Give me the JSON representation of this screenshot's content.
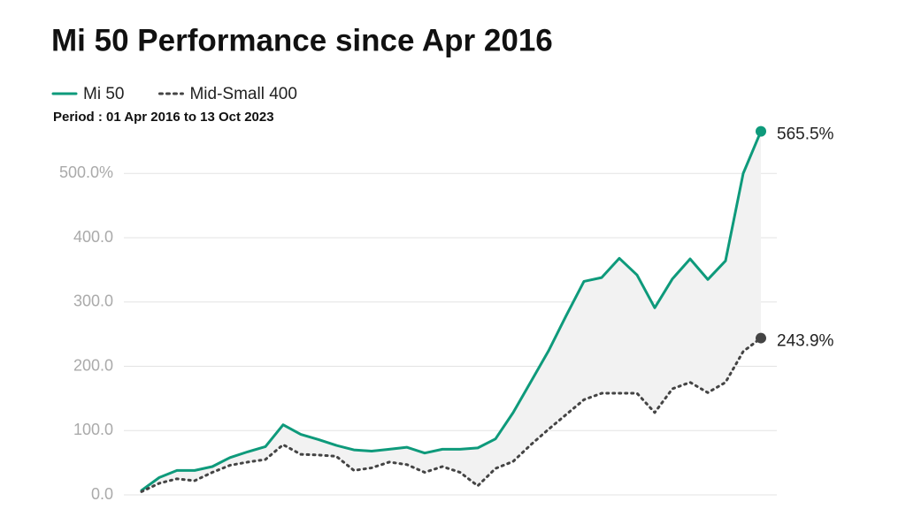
{
  "chart_data": {
    "type": "line",
    "title": "Mi 50 Performance since Apr 2016",
    "subtitle": "Period : 01 Apr 2016 to 13 Oct 2023",
    "legend": "top-left",
    "grid": true,
    "fill_between": "#f2f2f2",
    "ylim": [
      0,
      600
    ],
    "yticks": [
      {
        "value": 0,
        "label": "0.0"
      },
      {
        "value": 100,
        "label": "100.0"
      },
      {
        "value": 200,
        "label": "200.0"
      },
      {
        "value": 300,
        "label": "300.0"
      },
      {
        "value": 400,
        "label": "400.0"
      },
      {
        "value": 500,
        "label": "500.0%"
      }
    ],
    "series": [
      {
        "name": "Mi 50",
        "color": "#0e9a7b",
        "dash": false,
        "values": [
          7,
          27,
          38,
          38,
          44,
          58,
          67,
          75,
          109,
          94,
          86,
          77,
          70,
          68,
          71,
          74,
          65,
          71,
          71,
          73,
          87,
          128,
          176,
          224,
          279,
          332,
          338,
          368,
          342,
          291,
          336,
          367,
          335,
          364,
          500,
          565.5
        ],
        "value_labels": [
          null,
          null,
          null,
          null,
          null,
          null,
          null,
          null,
          null,
          null,
          null,
          null,
          null,
          null,
          null,
          null,
          null,
          null,
          null,
          null,
          null,
          null,
          null,
          null,
          null,
          null,
          null,
          null,
          null,
          null,
          null,
          null,
          null,
          null,
          null,
          "565.5%"
        ]
      },
      {
        "name": "Mid-Small 400",
        "color": "#444444",
        "dash": true,
        "values": [
          5,
          18,
          25,
          22,
          35,
          46,
          51,
          55,
          78,
          63,
          62,
          60,
          38,
          42,
          51,
          47,
          35,
          44,
          35,
          14,
          41,
          52,
          78,
          102,
          125,
          148,
          158,
          158,
          158,
          128,
          165,
          175,
          159,
          175,
          223,
          243.9
        ],
        "value_labels": [
          null,
          null,
          null,
          null,
          null,
          null,
          null,
          null,
          null,
          null,
          null,
          null,
          null,
          null,
          null,
          null,
          null,
          null,
          null,
          null,
          null,
          null,
          null,
          null,
          null,
          null,
          null,
          null,
          null,
          null,
          null,
          null,
          null,
          null,
          null,
          "243.9%"
        ]
      }
    ]
  }
}
